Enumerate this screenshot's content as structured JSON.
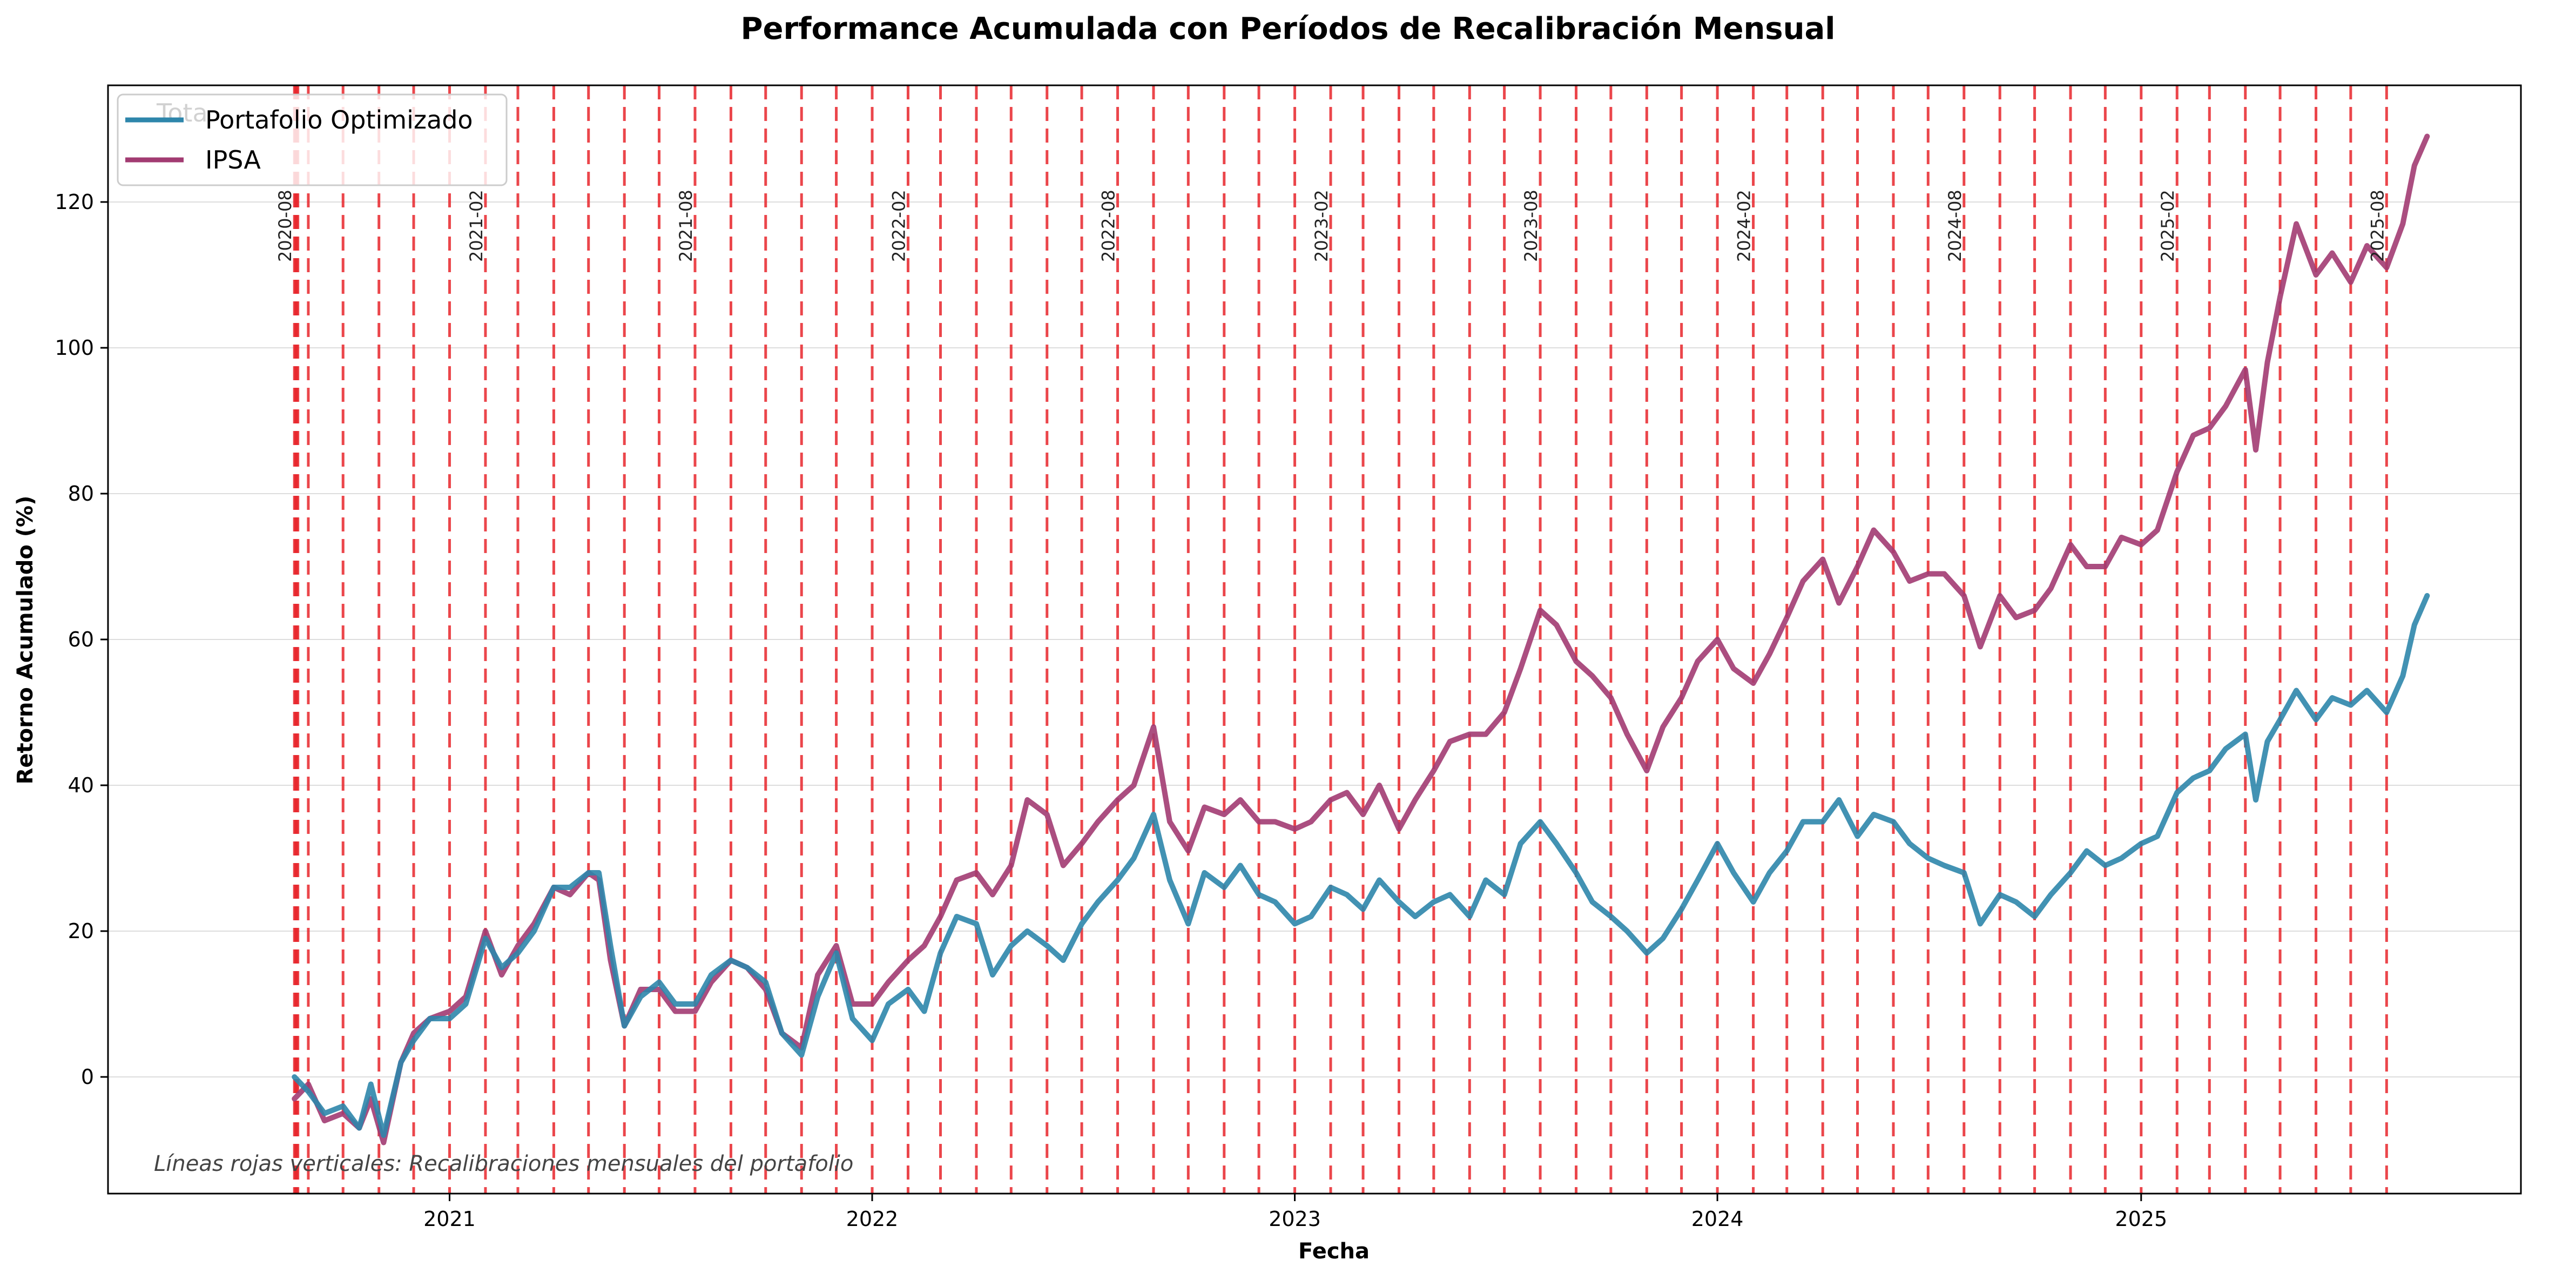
{
  "chart_data": {
    "type": "line",
    "title": "Performance Acumulada con Períodos de Recalibración Mensual",
    "xlabel": "Fecha",
    "ylabel": "Retorno Acumulado (%)",
    "x_range": [
      "2020-03-12",
      "2025-11-25"
    ],
    "ylim": [
      -16,
      136
    ],
    "x_ticks": [
      {
        "date": "2021-01-01",
        "label": "2021"
      },
      {
        "date": "2022-01-01",
        "label": "2022"
      },
      {
        "date": "2023-01-01",
        "label": "2023"
      },
      {
        "date": "2024-01-01",
        "label": "2024"
      },
      {
        "date": "2025-01-01",
        "label": "2025"
      }
    ],
    "y_ticks": [
      0,
      20,
      40,
      60,
      80,
      100,
      120
    ],
    "grid": "horizontal",
    "legend_position": "top-left",
    "recalibration_dates": [
      "2020-08-20",
      "2020-08-21",
      "2020-08-22",
      "2020-08-23",
      "2020-09-01",
      "2020-10-01",
      "2020-11-01",
      "2020-12-01",
      "2021-01-01",
      "2021-02-01",
      "2021-03-01",
      "2021-04-01",
      "2021-05-01",
      "2021-06-01",
      "2021-07-01",
      "2021-08-01",
      "2021-09-01",
      "2021-10-01",
      "2021-11-01",
      "2021-12-01",
      "2022-01-01",
      "2022-02-01",
      "2022-03-01",
      "2022-04-01",
      "2022-05-01",
      "2022-06-01",
      "2022-07-01",
      "2022-08-01",
      "2022-09-01",
      "2022-10-01",
      "2022-11-01",
      "2022-12-01",
      "2023-01-01",
      "2023-02-01",
      "2023-03-01",
      "2023-04-01",
      "2023-05-01",
      "2023-06-01",
      "2023-07-01",
      "2023-08-01",
      "2023-09-01",
      "2023-10-01",
      "2023-11-01",
      "2023-12-01",
      "2024-01-01",
      "2024-02-01",
      "2024-03-01",
      "2024-04-01",
      "2024-05-01",
      "2024-06-01",
      "2024-07-01",
      "2024-08-01",
      "2024-09-01",
      "2024-10-01",
      "2024-11-01",
      "2024-12-01",
      "2025-01-01",
      "2025-02-01",
      "2025-03-01",
      "2025-04-01",
      "2025-05-01",
      "2025-06-01",
      "2025-07-01",
      "2025-08-01"
    ],
    "recalibration_labels": [
      {
        "date": "2020-08-20",
        "label": "2020-08"
      },
      {
        "date": "2021-02-01",
        "label": "2021-02"
      },
      {
        "date": "2021-08-01",
        "label": "2021-08"
      },
      {
        "date": "2022-02-01",
        "label": "2022-02"
      },
      {
        "date": "2022-08-01",
        "label": "2022-08"
      },
      {
        "date": "2023-02-01",
        "label": "2023-02"
      },
      {
        "date": "2023-08-01",
        "label": "2023-08"
      },
      {
        "date": "2024-02-01",
        "label": "2024-02"
      },
      {
        "date": "2024-08-01",
        "label": "2024-08"
      },
      {
        "date": "2025-02-01",
        "label": "2025-02"
      },
      {
        "date": "2025-08-01",
        "label": "2025-08"
      }
    ],
    "series": [
      {
        "name": "Portafolio Optimizado",
        "color": "#2E86AB",
        "points": [
          [
            "2020-08-20",
            0
          ],
          [
            "2020-09-01",
            -2
          ],
          [
            "2020-09-15",
            -5
          ],
          [
            "2020-10-01",
            -4
          ],
          [
            "2020-10-15",
            -7
          ],
          [
            "2020-10-25",
            -1
          ],
          [
            "2020-11-05",
            -8
          ],
          [
            "2020-11-20",
            2
          ],
          [
            "2020-12-01",
            5
          ],
          [
            "2020-12-15",
            8
          ],
          [
            "2021-01-01",
            8
          ],
          [
            "2021-01-15",
            10
          ],
          [
            "2021-02-01",
            19
          ],
          [
            "2021-02-15",
            15
          ],
          [
            "2021-03-01",
            17
          ],
          [
            "2021-03-15",
            20
          ],
          [
            "2021-04-01",
            26
          ],
          [
            "2021-04-15",
            26
          ],
          [
            "2021-05-01",
            28
          ],
          [
            "2021-05-10",
            28
          ],
          [
            "2021-05-20",
            18
          ],
          [
            "2021-06-01",
            7
          ],
          [
            "2021-06-15",
            11
          ],
          [
            "2021-07-01",
            13
          ],
          [
            "2021-07-15",
            10
          ],
          [
            "2021-08-01",
            10
          ],
          [
            "2021-08-15",
            14
          ],
          [
            "2021-09-01",
            16
          ],
          [
            "2021-09-15",
            15
          ],
          [
            "2021-10-01",
            13
          ],
          [
            "2021-10-15",
            6
          ],
          [
            "2021-11-01",
            3
          ],
          [
            "2021-11-15",
            11
          ],
          [
            "2021-12-01",
            17
          ],
          [
            "2021-12-15",
            8
          ],
          [
            "2022-01-01",
            5
          ],
          [
            "2022-01-15",
            10
          ],
          [
            "2022-02-01",
            12
          ],
          [
            "2022-02-15",
            9
          ],
          [
            "2022-03-01",
            17
          ],
          [
            "2022-03-15",
            22
          ],
          [
            "2022-04-01",
            21
          ],
          [
            "2022-04-15",
            14
          ],
          [
            "2022-05-01",
            18
          ],
          [
            "2022-05-15",
            20
          ],
          [
            "2022-06-01",
            18
          ],
          [
            "2022-06-15",
            16
          ],
          [
            "2022-07-01",
            21
          ],
          [
            "2022-07-15",
            24
          ],
          [
            "2022-08-01",
            27
          ],
          [
            "2022-08-15",
            30
          ],
          [
            "2022-09-01",
            36
          ],
          [
            "2022-09-15",
            27
          ],
          [
            "2022-10-01",
            21
          ],
          [
            "2022-10-15",
            28
          ],
          [
            "2022-11-01",
            26
          ],
          [
            "2022-11-15",
            29
          ],
          [
            "2022-12-01",
            25
          ],
          [
            "2022-12-15",
            24
          ],
          [
            "2023-01-01",
            21
          ],
          [
            "2023-01-15",
            22
          ],
          [
            "2023-02-01",
            26
          ],
          [
            "2023-02-15",
            25
          ],
          [
            "2023-03-01",
            23
          ],
          [
            "2023-03-15",
            27
          ],
          [
            "2023-04-01",
            24
          ],
          [
            "2023-04-15",
            22
          ],
          [
            "2023-05-01",
            24
          ],
          [
            "2023-05-15",
            25
          ],
          [
            "2023-06-01",
            22
          ],
          [
            "2023-06-15",
            27
          ],
          [
            "2023-07-01",
            25
          ],
          [
            "2023-07-15",
            32
          ],
          [
            "2023-08-01",
            35
          ],
          [
            "2023-08-15",
            32
          ],
          [
            "2023-09-01",
            28
          ],
          [
            "2023-09-15",
            24
          ],
          [
            "2023-10-01",
            22
          ],
          [
            "2023-10-15",
            20
          ],
          [
            "2023-11-01",
            17
          ],
          [
            "2023-11-15",
            19
          ],
          [
            "2023-12-01",
            23
          ],
          [
            "2023-12-15",
            27
          ],
          [
            "2024-01-01",
            32
          ],
          [
            "2024-01-15",
            28
          ],
          [
            "2024-02-01",
            24
          ],
          [
            "2024-02-15",
            28
          ],
          [
            "2024-03-01",
            31
          ],
          [
            "2024-03-15",
            35
          ],
          [
            "2024-04-01",
            35
          ],
          [
            "2024-04-15",
            38
          ],
          [
            "2024-05-01",
            33
          ],
          [
            "2024-05-15",
            36
          ],
          [
            "2024-06-01",
            35
          ],
          [
            "2024-06-15",
            32
          ],
          [
            "2024-07-01",
            30
          ],
          [
            "2024-07-15",
            29
          ],
          [
            "2024-08-01",
            28
          ],
          [
            "2024-08-15",
            21
          ],
          [
            "2024-09-01",
            25
          ],
          [
            "2024-09-15",
            24
          ],
          [
            "2024-10-01",
            22
          ],
          [
            "2024-10-15",
            25
          ],
          [
            "2024-11-01",
            28
          ],
          [
            "2024-11-15",
            31
          ],
          [
            "2024-12-01",
            29
          ],
          [
            "2024-12-15",
            30
          ],
          [
            "2025-01-01",
            32
          ],
          [
            "2025-01-15",
            33
          ],
          [
            "2025-02-01",
            39
          ],
          [
            "2025-02-15",
            41
          ],
          [
            "2025-03-01",
            42
          ],
          [
            "2025-03-15",
            45
          ],
          [
            "2025-04-01",
            47
          ],
          [
            "2025-04-10",
            38
          ],
          [
            "2025-04-20",
            46
          ],
          [
            "2025-05-01",
            49
          ],
          [
            "2025-05-15",
            53
          ],
          [
            "2025-06-01",
            49
          ],
          [
            "2025-06-15",
            52
          ],
          [
            "2025-07-01",
            51
          ],
          [
            "2025-07-15",
            53
          ],
          [
            "2025-08-01",
            50
          ],
          [
            "2025-08-15",
            55
          ],
          [
            "2025-08-25",
            62
          ],
          [
            "2025-09-05",
            66
          ]
        ]
      },
      {
        "name": "IPSA",
        "color": "#A23B72",
        "points": [
          [
            "2020-08-20",
            -3
          ],
          [
            "2020-09-01",
            -1
          ],
          [
            "2020-09-15",
            -6
          ],
          [
            "2020-10-01",
            -5
          ],
          [
            "2020-10-15",
            -7
          ],
          [
            "2020-10-25",
            -3
          ],
          [
            "2020-11-05",
            -9
          ],
          [
            "2020-11-20",
            2
          ],
          [
            "2020-12-01",
            6
          ],
          [
            "2020-12-15",
            8
          ],
          [
            "2021-01-01",
            9
          ],
          [
            "2021-01-15",
            11
          ],
          [
            "2021-02-01",
            20
          ],
          [
            "2021-02-15",
            14
          ],
          [
            "2021-03-01",
            18
          ],
          [
            "2021-03-15",
            21
          ],
          [
            "2021-04-01",
            26
          ],
          [
            "2021-04-15",
            25
          ],
          [
            "2021-05-01",
            28
          ],
          [
            "2021-05-10",
            27
          ],
          [
            "2021-05-20",
            16
          ],
          [
            "2021-06-01",
            7
          ],
          [
            "2021-06-15",
            12
          ],
          [
            "2021-07-01",
            12
          ],
          [
            "2021-07-15",
            9
          ],
          [
            "2021-08-01",
            9
          ],
          [
            "2021-08-15",
            13
          ],
          [
            "2021-09-01",
            16
          ],
          [
            "2021-09-15",
            15
          ],
          [
            "2021-10-01",
            12
          ],
          [
            "2021-10-15",
            6
          ],
          [
            "2021-11-01",
            4
          ],
          [
            "2021-11-15",
            14
          ],
          [
            "2021-12-01",
            18
          ],
          [
            "2021-12-15",
            10
          ],
          [
            "2022-01-01",
            10
          ],
          [
            "2022-01-15",
            13
          ],
          [
            "2022-02-01",
            16
          ],
          [
            "2022-02-15",
            18
          ],
          [
            "2022-03-01",
            22
          ],
          [
            "2022-03-15",
            27
          ],
          [
            "2022-04-01",
            28
          ],
          [
            "2022-04-15",
            25
          ],
          [
            "2022-05-01",
            29
          ],
          [
            "2022-05-15",
            38
          ],
          [
            "2022-06-01",
            36
          ],
          [
            "2022-06-15",
            29
          ],
          [
            "2022-07-01",
            32
          ],
          [
            "2022-07-15",
            35
          ],
          [
            "2022-08-01",
            38
          ],
          [
            "2022-08-15",
            40
          ],
          [
            "2022-09-01",
            48
          ],
          [
            "2022-09-15",
            35
          ],
          [
            "2022-10-01",
            31
          ],
          [
            "2022-10-15",
            37
          ],
          [
            "2022-11-01",
            36
          ],
          [
            "2022-11-15",
            38
          ],
          [
            "2022-12-01",
            35
          ],
          [
            "2022-12-15",
            35
          ],
          [
            "2023-01-01",
            34
          ],
          [
            "2023-01-15",
            35
          ],
          [
            "2023-02-01",
            38
          ],
          [
            "2023-02-15",
            39
          ],
          [
            "2023-03-01",
            36
          ],
          [
            "2023-03-15",
            40
          ],
          [
            "2023-04-01",
            34
          ],
          [
            "2023-04-15",
            38
          ],
          [
            "2023-05-01",
            42
          ],
          [
            "2023-05-15",
            46
          ],
          [
            "2023-06-01",
            47
          ],
          [
            "2023-06-15",
            47
          ],
          [
            "2023-07-01",
            50
          ],
          [
            "2023-07-15",
            56
          ],
          [
            "2023-08-01",
            64
          ],
          [
            "2023-08-15",
            62
          ],
          [
            "2023-09-01",
            57
          ],
          [
            "2023-09-15",
            55
          ],
          [
            "2023-10-01",
            52
          ],
          [
            "2023-10-15",
            47
          ],
          [
            "2023-11-01",
            42
          ],
          [
            "2023-11-15",
            48
          ],
          [
            "2023-12-01",
            52
          ],
          [
            "2023-12-15",
            57
          ],
          [
            "2024-01-01",
            60
          ],
          [
            "2024-01-15",
            56
          ],
          [
            "2024-02-01",
            54
          ],
          [
            "2024-02-15",
            58
          ],
          [
            "2024-03-01",
            63
          ],
          [
            "2024-03-15",
            68
          ],
          [
            "2024-04-01",
            71
          ],
          [
            "2024-04-15",
            65
          ],
          [
            "2024-05-01",
            70
          ],
          [
            "2024-05-15",
            75
          ],
          [
            "2024-06-01",
            72
          ],
          [
            "2024-06-15",
            68
          ],
          [
            "2024-07-01",
            69
          ],
          [
            "2024-07-15",
            69
          ],
          [
            "2024-08-01",
            66
          ],
          [
            "2024-08-15",
            59
          ],
          [
            "2024-09-01",
            66
          ],
          [
            "2024-09-15",
            63
          ],
          [
            "2024-10-01",
            64
          ],
          [
            "2024-10-15",
            67
          ],
          [
            "2024-11-01",
            73
          ],
          [
            "2024-11-15",
            70
          ],
          [
            "2024-12-01",
            70
          ],
          [
            "2024-12-15",
            74
          ],
          [
            "2025-01-01",
            73
          ],
          [
            "2025-01-15",
            75
          ],
          [
            "2025-02-01",
            83
          ],
          [
            "2025-02-15",
            88
          ],
          [
            "2025-03-01",
            89
          ],
          [
            "2025-03-15",
            92
          ],
          [
            "2025-04-01",
            97
          ],
          [
            "2025-04-10",
            86
          ],
          [
            "2025-04-20",
            98
          ],
          [
            "2025-05-01",
            107
          ],
          [
            "2025-05-15",
            117
          ],
          [
            "2025-06-01",
            110
          ],
          [
            "2025-06-15",
            113
          ],
          [
            "2025-07-01",
            109
          ],
          [
            "2025-07-15",
            114
          ],
          [
            "2025-08-01",
            111
          ],
          [
            "2025-08-15",
            117
          ],
          [
            "2025-08-25",
            125
          ],
          [
            "2025-09-05",
            129
          ]
        ]
      }
    ],
    "note": "Líneas rojas verticales: Recalibraciones mensuales del portafolio",
    "legend_ghost_text": "Tota"
  }
}
